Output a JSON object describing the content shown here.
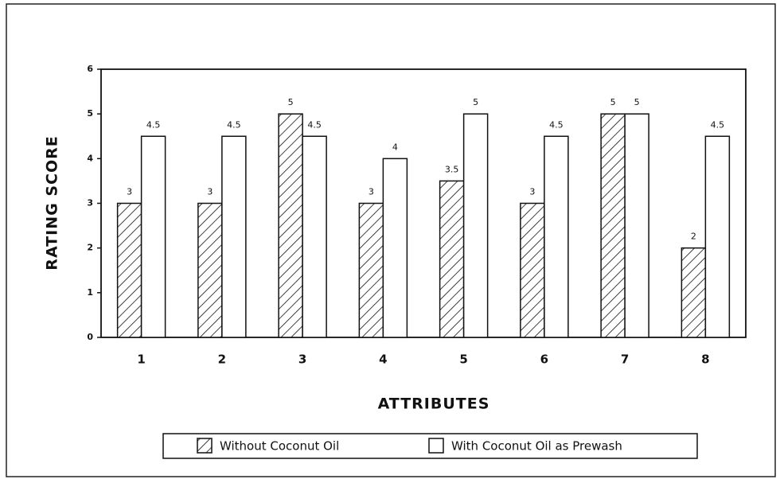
{
  "chart_data": {
    "type": "bar",
    "x_label": "ATTRIBUTES",
    "y_label": "RATING SCORE",
    "categories": [
      "1",
      "2",
      "3",
      "4",
      "5",
      "6",
      "7",
      "8"
    ],
    "series": [
      {
        "name": "Without Coconut Oil",
        "color": "#000000",
        "pattern": "hatch",
        "values": [
          3,
          3,
          5,
          3,
          3.5,
          3,
          5,
          2
        ]
      },
      {
        "name": "With Coconut Oil as Prewash",
        "color": "#ffffff",
        "values": [
          4.5,
          4.5,
          4.5,
          4,
          5,
          4.5,
          5,
          4.5
        ]
      }
    ],
    "ylim": [
      0,
      6
    ],
    "yticks": [
      0,
      1,
      2,
      3,
      4,
      5,
      6
    ],
    "grid": false,
    "legend": "bottom"
  }
}
